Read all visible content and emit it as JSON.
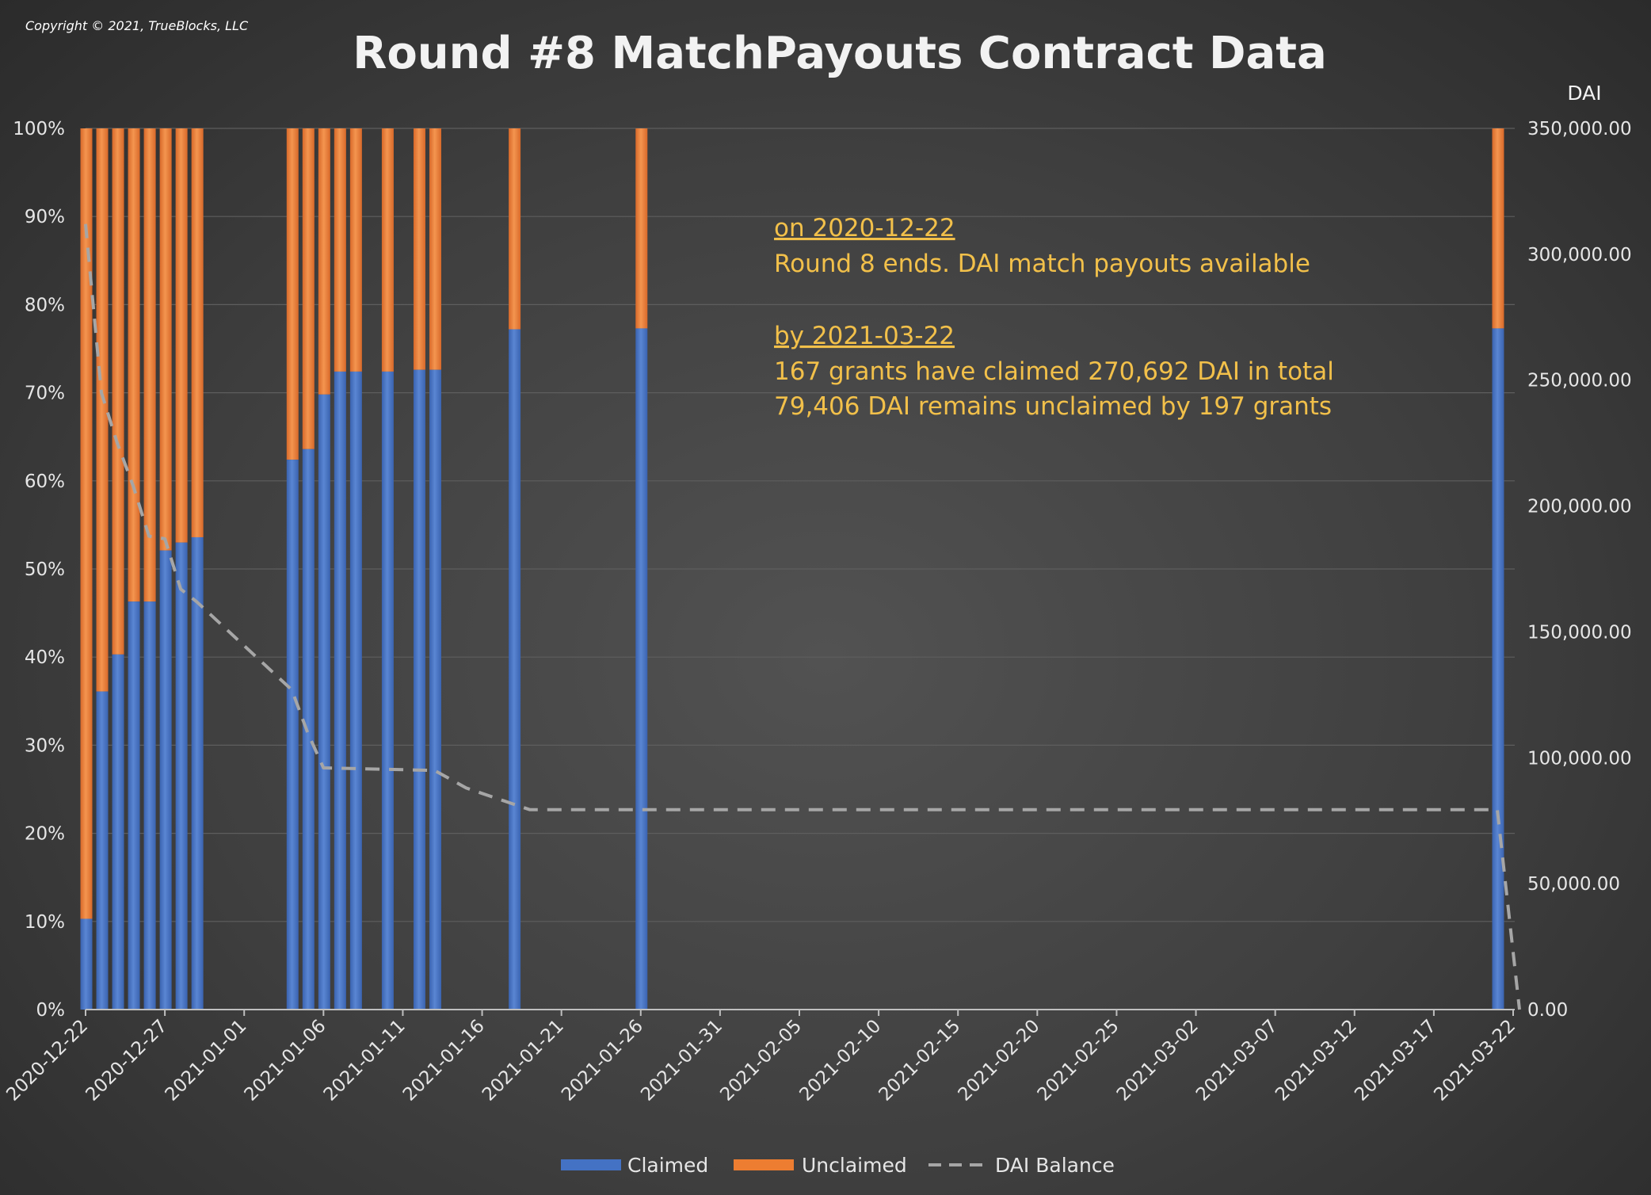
{
  "copyright": "Copyright © 2021, TrueBlocks, LLC",
  "chart_data": {
    "type": "bar",
    "stacked": true,
    "title": "Round #8 MatchPayouts Contract Data",
    "xlabel": "",
    "ylabel": "",
    "y2label": "DAI",
    "ylim": [
      0,
      100
    ],
    "y2lim": [
      0,
      350000
    ],
    "y_ticks": [
      "0%",
      "10%",
      "20%",
      "30%",
      "40%",
      "50%",
      "60%",
      "70%",
      "80%",
      "90%",
      "100%"
    ],
    "y2_ticks": [
      "0.00",
      "50,000.00",
      "100,000.00",
      "150,000.00",
      "200,000.00",
      "250,000.00",
      "300,000.00",
      "350,000.00"
    ],
    "x_ticks": [
      "2020-12-22",
      "2020-12-27",
      "2021-01-01",
      "2021-01-06",
      "2021-01-11",
      "2021-01-16",
      "2021-01-21",
      "2021-01-26",
      "2021-01-31",
      "2021-02-05",
      "2021-02-10",
      "2021-02-15",
      "2021-02-20",
      "2021-02-25",
      "2021-03-02",
      "2021-03-07",
      "2021-03-12",
      "2021-03-17",
      "2021-03-22"
    ],
    "grid": true,
    "legend_position": "bottom",
    "colors": {
      "claimed": "#4472c4",
      "unclaimed": "#ed7d31",
      "balance": "#a6a6a6"
    },
    "bars": [
      {
        "date": "2020-12-22",
        "claimed": 10.3
      },
      {
        "date": "2020-12-23",
        "claimed": 36.1
      },
      {
        "date": "2020-12-24",
        "claimed": 40.3
      },
      {
        "date": "2020-12-25",
        "claimed": 46.3
      },
      {
        "date": "2020-12-26",
        "claimed": 46.3
      },
      {
        "date": "2020-12-27",
        "claimed": 52.1
      },
      {
        "date": "2020-12-28",
        "claimed": 53.0
      },
      {
        "date": "2020-12-29",
        "claimed": 53.6
      },
      {
        "date": "2021-01-04",
        "claimed": 62.4
      },
      {
        "date": "2021-01-05",
        "claimed": 63.6
      },
      {
        "date": "2021-01-06",
        "claimed": 69.8
      },
      {
        "date": "2021-01-07",
        "claimed": 72.4
      },
      {
        "date": "2021-01-08",
        "claimed": 72.4
      },
      {
        "date": "2021-01-10",
        "claimed": 72.4
      },
      {
        "date": "2021-01-12",
        "claimed": 72.6
      },
      {
        "date": "2021-01-13",
        "claimed": 72.6
      },
      {
        "date": "2021-01-18",
        "claimed": 77.2
      },
      {
        "date": "2021-01-26",
        "claimed": 77.3
      },
      {
        "date": "2021-03-21",
        "claimed": 77.3
      }
    ],
    "series": [
      {
        "name": "Claimed"
      },
      {
        "name": "Unclaimed"
      },
      {
        "name": "DAI Balance",
        "points": [
          {
            "date": "2020-12-22",
            "value": 312000
          },
          {
            "date": "2020-12-23",
            "value": 245000
          },
          {
            "date": "2020-12-24",
            "value": 225000
          },
          {
            "date": "2020-12-25",
            "value": 208000
          },
          {
            "date": "2020-12-26",
            "value": 188000
          },
          {
            "date": "2020-12-27",
            "value": 187000
          },
          {
            "date": "2020-12-28",
            "value": 167000
          },
          {
            "date": "2020-12-29",
            "value": 162000
          },
          {
            "date": "2021-01-04",
            "value": 127000
          },
          {
            "date": "2021-01-05",
            "value": 110000
          },
          {
            "date": "2021-01-06",
            "value": 96000
          },
          {
            "date": "2021-01-13",
            "value": 95000
          },
          {
            "date": "2021-01-15",
            "value": 88000
          },
          {
            "date": "2021-01-19",
            "value": 79400
          },
          {
            "date": "2021-03-21",
            "value": 79400
          },
          {
            "date": "2021-03-22",
            "value": 0
          }
        ]
      }
    ],
    "annotations": [
      {
        "heading": "on 2020-12-22",
        "lines": [
          "Round 8 ends. DAI match payouts available"
        ]
      },
      {
        "heading": "by 2021-03-22",
        "lines": [
          "167 grants have claimed 270,692 DAI in total",
          "79,406 DAI remains unclaimed by 197 grants"
        ]
      }
    ]
  }
}
